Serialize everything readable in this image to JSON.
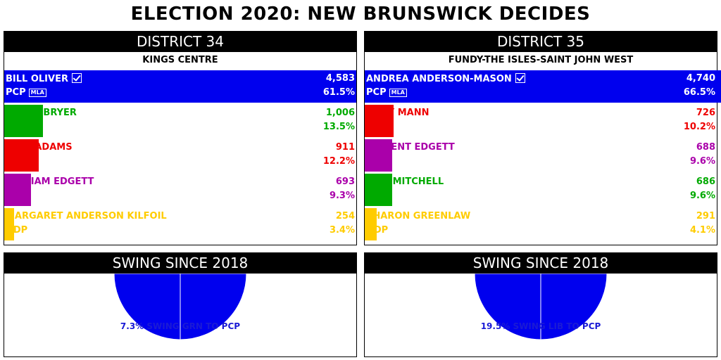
{
  "title": "ELECTION 2020: NEW BRUNSWICK DECIDES",
  "colors": {
    "PCP": "#0000ee",
    "GRN": "#00aa00",
    "LIB": "#ee0000",
    "PA": "#aa00aa",
    "NDP": "#ffcc00"
  },
  "districts": [
    {
      "header": "DISTRICT 34",
      "name": "KINGS CENTRE",
      "candidates": [
        {
          "name": "BILL OLIVER",
          "party": "PCP",
          "votes": "4,583",
          "pct": "61.5%",
          "share": 61.5,
          "winner": true,
          "badge": "MLA"
        },
        {
          "name": "BRUCE BRYER",
          "party": "GRN",
          "votes": "1,006",
          "pct": "13.5%",
          "share": 13.5
        },
        {
          "name": "PAUL ADAMS",
          "party": "LIB",
          "votes": "911",
          "pct": "12.2%",
          "share": 12.2
        },
        {
          "name": "WILLIAM EDGETT",
          "party": "PA",
          "votes": "693",
          "pct": "9.3%",
          "share": 9.3
        },
        {
          "name": "MARGARET ANDERSON KILFOIL",
          "party": "NDP",
          "votes": "254",
          "pct": "3.4%",
          "share": 3.4
        }
      ],
      "swing": {
        "header": "SWING SINCE 2018",
        "label": "7.3% SWING GRN TO PCP",
        "value": 7.3,
        "from": "GRN",
        "to": "PCP"
      }
    },
    {
      "header": "DISTRICT 35",
      "name": "FUNDY-THE ISLES-SAINT JOHN WEST",
      "candidates": [
        {
          "name": "ANDREA ANDERSON-MASON",
          "party": "PCP",
          "votes": "4,740",
          "pct": "66.5%",
          "share": 66.5,
          "winner": true,
          "badge": "MLA"
        },
        {
          "name": "TONY MANN",
          "party": "LIB",
          "votes": "726",
          "pct": "10.2%",
          "share": 10.2
        },
        {
          "name": "VINCENT EDGETT",
          "party": "PA",
          "votes": "688",
          "pct": "9.6%",
          "share": 9.6
        },
        {
          "name": "LOIS MITCHELL",
          "party": "GRN",
          "votes": "686",
          "pct": "9.6%",
          "share": 9.6
        },
        {
          "name": "SHARON GREENLAW",
          "party": "NDP",
          "votes": "291",
          "pct": "4.1%",
          "share": 4.1
        }
      ],
      "swing": {
        "header": "SWING SINCE 2018",
        "label": "19.5% SWING LIB TO PCP",
        "value": 19.5,
        "from": "LIB",
        "to": "PCP"
      }
    }
  ]
}
